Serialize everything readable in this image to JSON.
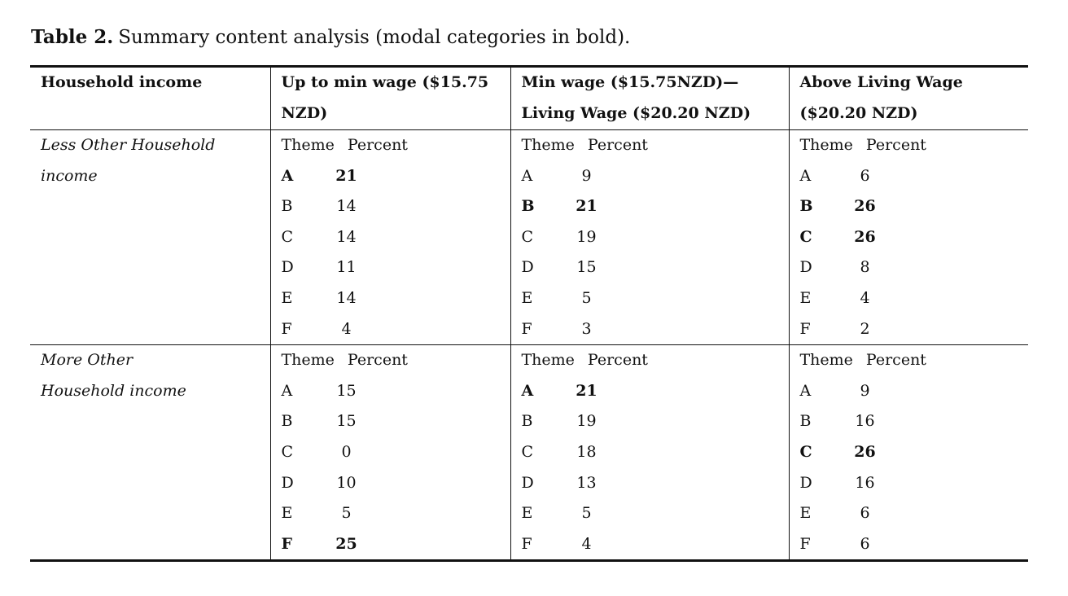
{
  "caption": {
    "label": "Table 2.",
    "text": "Summary content analysis (modal categories in bold)."
  },
  "table": {
    "header": [
      "Household income",
      "Up to min wage ($15.75 NZD)",
      "Min wage ($15.75NZD)—Living Wage ($20.20 NZD)",
      "Above Living Wage ($20.20 NZD)"
    ],
    "sub_header": [
      "Theme",
      "Percent"
    ],
    "themes": [
      "A",
      "B",
      "C",
      "D",
      "E",
      "F"
    ],
    "rows": [
      {
        "label": "Less Other Household income",
        "groups": [
          {
            "percents": [
              21,
              14,
              14,
              11,
              14,
              4
            ],
            "modal": [
              true,
              false,
              false,
              false,
              false,
              false
            ]
          },
          {
            "percents": [
              9,
              21,
              19,
              15,
              5,
              3
            ],
            "modal": [
              false,
              true,
              false,
              false,
              false,
              false
            ]
          },
          {
            "percents": [
              6,
              26,
              26,
              8,
              4,
              2
            ],
            "modal": [
              false,
              true,
              true,
              false,
              false,
              false
            ]
          }
        ]
      },
      {
        "label": "More Other Household income",
        "groups": [
          {
            "percents": [
              15,
              15,
              0,
              10,
              5,
              25
            ],
            "modal": [
              false,
              false,
              false,
              false,
              false,
              true
            ]
          },
          {
            "percents": [
              21,
              19,
              18,
              13,
              5,
              4
            ],
            "modal": [
              true,
              false,
              false,
              false,
              false,
              false
            ]
          },
          {
            "percents": [
              9,
              16,
              26,
              16,
              6,
              6
            ],
            "modal": [
              false,
              false,
              true,
              false,
              false,
              false
            ]
          }
        ]
      }
    ]
  }
}
